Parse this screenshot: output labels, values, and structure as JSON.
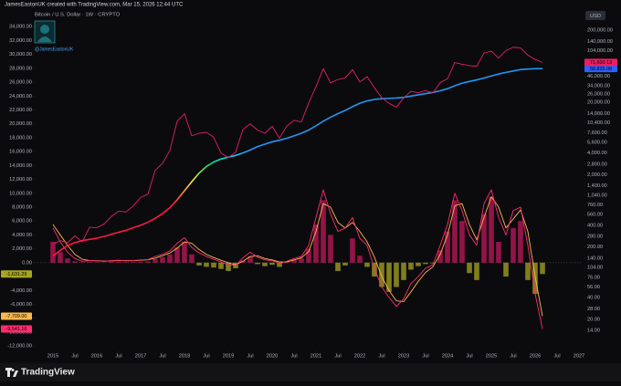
{
  "header": "JamesEastonUK created with TradingView.com, Mar 15, 2026 12:44 UTC",
  "author": "@JamesEastonUK",
  "brand": "TradingView",
  "chart_data": {
    "type": "line",
    "title": "Bitcoin / U.S. Dollar · 1W · CRYPTO",
    "y2_label": "USD",
    "grid": false,
    "y2log": true,
    "x": [
      "2015-01",
      "2015-03",
      "2015-05",
      "2015-07",
      "2015-09",
      "2015-11",
      "2016-01",
      "2016-03",
      "2016-05",
      "2016-07",
      "2016-09",
      "2016-11",
      "2017-01",
      "2017-03",
      "2017-05",
      "2017-07",
      "2017-09",
      "2017-11",
      "2018-01",
      "2018-03",
      "2018-05",
      "2018-07",
      "2018-09",
      "2018-11",
      "2019-01",
      "2019-03",
      "2019-05",
      "2019-07",
      "2019-09",
      "2019-11",
      "2020-01",
      "2020-03",
      "2020-05",
      "2020-07",
      "2020-09",
      "2020-11",
      "2021-01",
      "2021-03",
      "2021-05",
      "2021-07",
      "2021-09",
      "2021-11",
      "2022-01",
      "2022-03",
      "2022-05",
      "2022-07",
      "2022-09",
      "2022-11",
      "2023-01",
      "2023-03",
      "2023-05",
      "2023-07",
      "2023-09",
      "2023-11",
      "2024-01",
      "2024-03",
      "2024-05",
      "2024-07",
      "2024-09",
      "2024-11",
      "2025-01",
      "2025-03",
      "2025-05",
      "2025-07",
      "2025-09",
      "2025-11",
      "2026-01",
      "2026-03"
    ],
    "xlim": [
      "2014-08",
      "2027-02"
    ],
    "xticks": [
      {
        "value": "2015-01",
        "label": "2015"
      },
      {
        "value": "2015-07",
        "label": "Jul"
      },
      {
        "value": "2016-01",
        "label": "2016"
      },
      {
        "value": "2016-07",
        "label": "Jul"
      },
      {
        "value": "2017-01",
        "label": "2017"
      },
      {
        "value": "2017-07",
        "label": "Jul"
      },
      {
        "value": "2018-01",
        "label": "2018"
      },
      {
        "value": "2018-07",
        "label": "Jul"
      },
      {
        "value": "2019-01",
        "label": "2019"
      },
      {
        "value": "2019-07",
        "label": "Jul"
      },
      {
        "value": "2020-01",
        "label": "2020"
      },
      {
        "value": "2020-07",
        "label": "Jul"
      },
      {
        "value": "2021-01",
        "label": "2021"
      },
      {
        "value": "2021-07",
        "label": "Jul"
      },
      {
        "value": "2022-01",
        "label": "2022"
      },
      {
        "value": "2022-07",
        "label": "Jul"
      },
      {
        "value": "2023-01",
        "label": "2023"
      },
      {
        "value": "2023-07",
        "label": "Jul"
      },
      {
        "value": "2024-01",
        "label": "2024"
      },
      {
        "value": "2024-07",
        "label": "Jul"
      },
      {
        "value": "2025-01",
        "label": "2025"
      },
      {
        "value": "2025-07",
        "label": "Jul"
      },
      {
        "value": "2026-01",
        "label": "2026"
      },
      {
        "value": "2026-07",
        "label": "Jul"
      },
      {
        "value": "2027-01",
        "label": "2027"
      }
    ],
    "ylim": [
      -12900,
      36000
    ],
    "yticks": [
      {
        "value": 34000,
        "label": "34,000.00"
      },
      {
        "value": 32000,
        "label": "32,000.00"
      },
      {
        "value": 30000,
        "label": "30,000.00"
      },
      {
        "value": 28000,
        "label": "28,000.00"
      },
      {
        "value": 26000,
        "label": "26,000.00"
      },
      {
        "value": 24000,
        "label": "24,000.00"
      },
      {
        "value": 22000,
        "label": "22,000.00"
      },
      {
        "value": 20000,
        "label": "20,000.00"
      },
      {
        "value": 18000,
        "label": "18,000.00"
      },
      {
        "value": 16000,
        "label": "16,000.00"
      },
      {
        "value": 14000,
        "label": "14,000.00"
      },
      {
        "value": 12000,
        "label": "12,000.00"
      },
      {
        "value": 10000,
        "label": "10,000.00"
      },
      {
        "value": 8000,
        "label": "8,000.00"
      },
      {
        "value": 6000,
        "label": "6,000.00"
      },
      {
        "value": 4000,
        "label": "4,000.00"
      },
      {
        "value": 2000,
        "label": "2,000.00"
      },
      {
        "value": 0,
        "label": "0.00"
      },
      {
        "value": -2000,
        "label": "-2,000.00"
      },
      {
        "value": -4000,
        "label": "-4,000.00"
      },
      {
        "value": -6000,
        "label": "-6,000.00"
      },
      {
        "value": -8000,
        "label": "-8,000.00"
      },
      {
        "value": -10000,
        "label": "-10,000.00"
      },
      {
        "value": -12000,
        "label": "-12,000.00"
      }
    ],
    "y2lim": [
      7,
      348000
    ],
    "y2ticks": [
      {
        "value": 200000,
        "label": "200,000.00"
      },
      {
        "value": 140000,
        "label": "140,000.00"
      },
      {
        "value": 104000,
        "label": "104,000.00"
      },
      {
        "value": 60000,
        "label": "60,000.00"
      },
      {
        "value": 46000,
        "label": "46,000.00"
      },
      {
        "value": 34000,
        "label": "34,000.00"
      },
      {
        "value": 26000,
        "label": "26,000.00"
      },
      {
        "value": 20000,
        "label": "20,000.00"
      },
      {
        "value": 14000,
        "label": "14,000.00"
      },
      {
        "value": 10400,
        "label": "10,400.00"
      },
      {
        "value": 7600,
        "label": "7,600.00"
      },
      {
        "value": 5600,
        "label": "5,600.00"
      },
      {
        "value": 4000,
        "label": "4,000.00"
      },
      {
        "value": 2800,
        "label": "2,800.00"
      },
      {
        "value": 2000,
        "label": "2,000.00"
      },
      {
        "value": 1400,
        "label": "1,400.00"
      },
      {
        "value": 1040,
        "label": "1,040.00"
      },
      {
        "value": 760,
        "label": "760.00"
      },
      {
        "value": 560,
        "label": "560.00"
      },
      {
        "value": 400,
        "label": "400.00"
      },
      {
        "value": 280,
        "label": "280.00"
      },
      {
        "value": 200,
        "label": "200.00"
      },
      {
        "value": 140,
        "label": "140.00"
      },
      {
        "value": 104,
        "label": "104.00"
      },
      {
        "value": 76,
        "label": "76.00"
      },
      {
        "value": 56,
        "label": "56.00"
      },
      {
        "value": 40,
        "label": "40.00"
      },
      {
        "value": 28,
        "label": "28.00"
      },
      {
        "value": 20,
        "label": "20.00"
      },
      {
        "value": 14,
        "label": "14.00"
      }
    ],
    "series": [
      {
        "kind": "histogram",
        "color": "#c2185b",
        "negative_color": "#a8a523",
        "last_label": "-1,631.29",
        "values": [
          3000,
          1500,
          600,
          200,
          80,
          100,
          80,
          60,
          100,
          120,
          80,
          100,
          150,
          200,
          500,
          800,
          1200,
          2200,
          3000,
          1200,
          -400,
          -600,
          -700,
          -900,
          -1200,
          -800,
          300,
          900,
          -200,
          -500,
          -300,
          -600,
          100,
          400,
          600,
          2000,
          5500,
          9000,
          4000,
          -1200,
          -400,
          3500,
          1000,
          -600,
          -2000,
          -3500,
          -4200,
          -3500,
          -2500,
          -1000,
          -500,
          -200,
          -100,
          1800,
          4500,
          9000,
          6000,
          -1500,
          -2500,
          7000,
          9500,
          3000,
          -2000,
          5000,
          6000,
          -2500,
          -4500,
          -1631.29
        ]
      },
      {
        "kind": "line",
        "color": "#ffb74d",
        "last_label": "-7,709.00",
        "values": [
          5500,
          4000,
          2500,
          1200,
          500,
          300,
          280,
          230,
          260,
          320,
          300,
          290,
          350,
          420,
          650,
          1000,
          1400,
          2100,
          3000,
          2800,
          1900,
          1200,
          750,
          350,
          0,
          -300,
          200,
          900,
          1000,
          600,
          400,
          100,
          100,
          400,
          700,
          1600,
          4500,
          8500,
          8000,
          5800,
          5000,
          5800,
          4500,
          3000,
          800,
          -2000,
          -4000,
          -5500,
          -5600,
          -4200,
          -2700,
          -1400,
          -600,
          1200,
          4000,
          8200,
          8500,
          5500,
          3300,
          6500,
          9500,
          8000,
          5000,
          6300,
          7600,
          4500,
          -2000,
          -7709.0
        ]
      },
      {
        "kind": "line",
        "color": "#ff2d6f",
        "last_label": "-9,541.16",
        "values": [
          5000,
          3000,
          1500,
          600,
          200,
          300,
          250,
          200,
          300,
          350,
          250,
          300,
          400,
          450,
          900,
          1200,
          1700,
          2800,
          3600,
          2200,
          1400,
          900,
          500,
          100,
          -300,
          -400,
          700,
          1500,
          800,
          400,
          300,
          -100,
          200,
          600,
          900,
          2500,
          6500,
          10500,
          7000,
          4500,
          5000,
          6500,
          3500,
          2500,
          -800,
          -3500,
          -5000,
          -6300,
          -5200,
          -3000,
          -2000,
          -800,
          -300,
          2500,
          5500,
          10000,
          7500,
          4000,
          2500,
          8500,
          10500,
          6500,
          4000,
          7500,
          8000,
          2500,
          -4500,
          -9541.16
        ]
      },
      {
        "kind": "line",
        "axis": "y2",
        "color": "#2962ff",
        "gradient": [
          "#ff1744",
          "#ffeb3b",
          "#00e676",
          "#00e5ff",
          "#2196f3"
        ],
        "last_label": "58,835.08",
        "values": [
          150,
          180,
          210,
          230,
          245,
          255,
          265,
          280,
          300,
          320,
          340,
          370,
          400,
          440,
          500,
          580,
          700,
          900,
          1200,
          1600,
          2100,
          2600,
          3000,
          3300,
          3500,
          3700,
          4000,
          4400,
          4900,
          5300,
          5700,
          6000,
          6400,
          6900,
          7500,
          8300,
          9500,
          11000,
          12500,
          14000,
          15500,
          17500,
          19500,
          21000,
          22000,
          22500,
          22800,
          23000,
          23500,
          24500,
          25500,
          26500,
          27500,
          29000,
          31000,
          34000,
          37000,
          39000,
          41000,
          43500,
          46500,
          49500,
          52000,
          54500,
          57000,
          58000,
          58500,
          58835.08
        ]
      },
      {
        "kind": "line",
        "axis": "y2",
        "color": "#e91e63",
        "last_label": "71,600.13",
        "values": [
          220,
          245,
          230,
          285,
          235,
          375,
          370,
          415,
          530,
          625,
          610,
          740,
          970,
          1080,
          2300,
          2880,
          4340,
          11000,
          14000,
          6900,
          7500,
          7730,
          6600,
          4000,
          3450,
          4100,
          8500,
          10100,
          8300,
          7500,
          9350,
          6400,
          9450,
          11300,
          10780,
          19700,
          33100,
          58800,
          37300,
          41500,
          43800,
          57000,
          38500,
          45500,
          31800,
          23300,
          19400,
          17200,
          23100,
          28500,
          27200,
          29200,
          27000,
          37700,
          42600,
          71300,
          67500,
          64600,
          63300,
          96400,
          102400,
          82500,
          104600,
          115700,
          114000,
          90400,
          78600,
          71600.13
        ]
      }
    ]
  }
}
